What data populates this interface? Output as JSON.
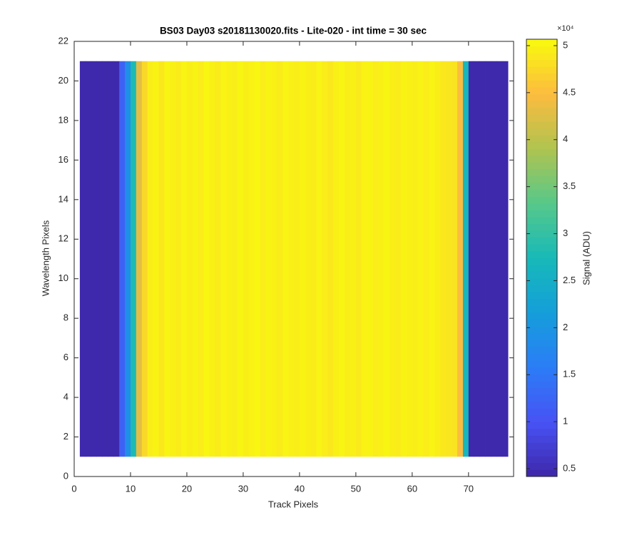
{
  "chart_data": {
    "type": "heatmap",
    "title": "BS03 Day03  s20181130020.fits - Lite-020 - int time = 30 sec",
    "x_label": "Track Pixels",
    "y_label": "Wavelength Pixels",
    "colorbar_label": "Signal (ADU)",
    "colorbar_scale_label": "×10⁴",
    "colormap": "parula",
    "x_edges": [
      1,
      2,
      3,
      4,
      5,
      6,
      7,
      8,
      9,
      10,
      11,
      12,
      13,
      14,
      15,
      16,
      17,
      18,
      19,
      20,
      21,
      22,
      23,
      24,
      25,
      26,
      27,
      28,
      29,
      30,
      31,
      32,
      33,
      34,
      35,
      36,
      37,
      38,
      39,
      40,
      41,
      42,
      43,
      44,
      45,
      46,
      47,
      48,
      49,
      50,
      51,
      52,
      53,
      54,
      55,
      56,
      57,
      58,
      59,
      60,
      61,
      62,
      63,
      64,
      65,
      66,
      67,
      68,
      69,
      70,
      71,
      72,
      73,
      74,
      75,
      76,
      77
    ],
    "y_edges": [
      1,
      21
    ],
    "values": [
      4500,
      4500,
      4500,
      4500,
      4500,
      4500,
      4500,
      12000,
      19000,
      28000,
      43000,
      47500,
      49500,
      50000,
      49000,
      50200,
      49800,
      49300,
      50100,
      49600,
      50000,
      49400,
      50300,
      49700,
      49200,
      50100,
      49800,
      49500,
      50200,
      49600,
      49900,
      50300,
      49400,
      50000,
      49700,
      49200,
      50100,
      49800,
      49500,
      50000,
      49600,
      49300,
      50100,
      49400,
      49000,
      49800,
      50200,
      49500,
      49700,
      49100,
      49900,
      50000,
      49400,
      49800,
      50200,
      49600,
      49300,
      50000,
      49700,
      49500,
      49900,
      49400,
      50100,
      49600,
      49000,
      48800,
      48500,
      45000,
      27000,
      4500,
      4500,
      4500,
      4500,
      4500,
      4500,
      4500
    ],
    "xlim": [
      0,
      78
    ],
    "ylim": [
      0,
      22
    ],
    "xticks": [
      0,
      10,
      20,
      30,
      40,
      50,
      60,
      70
    ],
    "yticks": [
      0,
      2,
      4,
      6,
      8,
      10,
      12,
      14,
      16,
      18,
      20,
      22
    ],
    "clim": [
      4170,
      50680
    ],
    "cticks": [
      {
        "value": 5000,
        "label": "0.5"
      },
      {
        "value": 10000,
        "label": "1"
      },
      {
        "value": 15000,
        "label": "1.5"
      },
      {
        "value": 20000,
        "label": "2"
      },
      {
        "value": 25000,
        "label": "2.5"
      },
      {
        "value": 30000,
        "label": "3"
      },
      {
        "value": 35000,
        "label": "3.5"
      },
      {
        "value": 40000,
        "label": "4"
      },
      {
        "value": 45000,
        "label": "4.5"
      },
      {
        "value": 50000,
        "label": "5"
      }
    ]
  }
}
